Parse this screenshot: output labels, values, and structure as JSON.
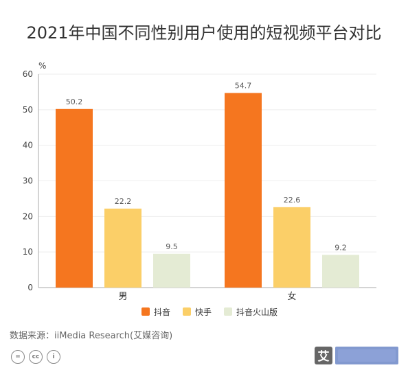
{
  "chart_data": {
    "type": "bar",
    "title": "2021年中国不同性别用户使用的短视频平台对比",
    "y_unit": "%",
    "ylim": [
      0,
      60
    ],
    "yticks": [
      0,
      10,
      20,
      30,
      40,
      50,
      60
    ],
    "categories": [
      "男",
      "女"
    ],
    "series": [
      {
        "name": "抖音",
        "color": "#f5761f",
        "values": [
          50.2,
          54.7
        ]
      },
      {
        "name": "快手",
        "color": "#fbcf68",
        "values": [
          22.2,
          22.6
        ]
      },
      {
        "name": "抖音火山版",
        "color": "#e4ebd4",
        "values": [
          9.5,
          9.2
        ]
      }
    ],
    "legend_position": "bottom",
    "grid": true
  },
  "source": "数据来源：iiMedia Research(艾媒咨询)",
  "license_icons": [
    "equal-icon",
    "cc-icon",
    "attribution-icon"
  ],
  "watermark": "艾"
}
